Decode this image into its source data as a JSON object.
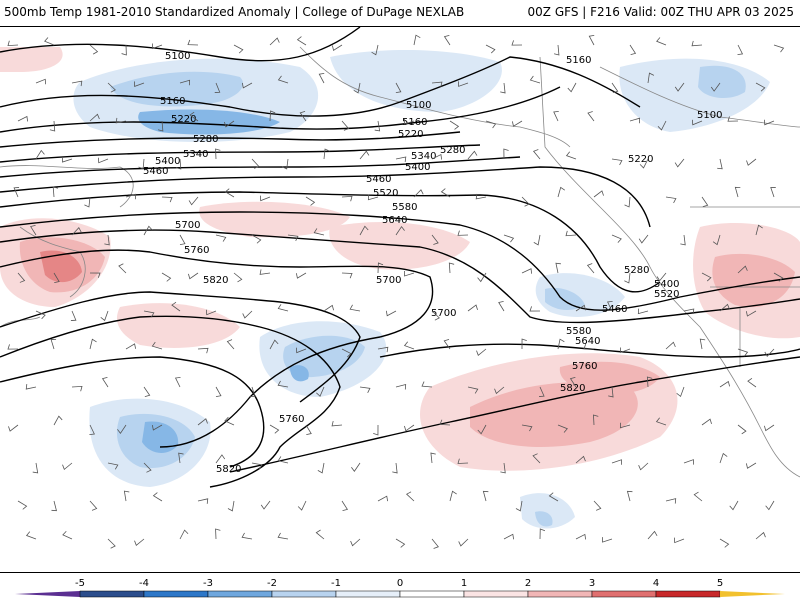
{
  "header": {
    "title_left": "500mb Temp 1981-2010 Standardized Anomaly | College of DuPage NEXLAB",
    "title_right": "00Z GFS | F216 Valid: 00Z THU APR 03 2025"
  },
  "colors": {
    "cold_light": "#dbe8f6",
    "cold_mid": "#b7d3ef",
    "cold_strong": "#86b7e6",
    "cold_deep": "#4e8fd6",
    "warm_light": "#f8dada",
    "warm_mid": "#f1b6b6",
    "warm_strong": "#e58686",
    "contour": "#000000",
    "land_line": "#888888"
  },
  "contours": [
    {
      "label": "5100"
    },
    {
      "label": "5160"
    },
    {
      "label": "5220"
    },
    {
      "label": "5280"
    },
    {
      "label": "5340"
    },
    {
      "label": "5400"
    },
    {
      "label": "5460"
    },
    {
      "label": "5520"
    },
    {
      "label": "5580"
    },
    {
      "label": "5640"
    },
    {
      "label": "5700"
    },
    {
      "label": "5760"
    },
    {
      "label": "5820"
    }
  ],
  "legend": {
    "ticks": [
      "-5",
      "-4",
      "-3",
      "-2",
      "-1",
      "0",
      "1",
      "2",
      "3",
      "4",
      "5"
    ],
    "colors": [
      "#5b2f92",
      "#2b4d8c",
      "#2d77c8",
      "#6fa7de",
      "#b8d3ef",
      "#e6eff9",
      "#ffffff",
      "#fbe4e4",
      "#f1b6b6",
      "#e07070",
      "#c8282a",
      "#8e1016",
      "#f2c12e"
    ]
  }
}
